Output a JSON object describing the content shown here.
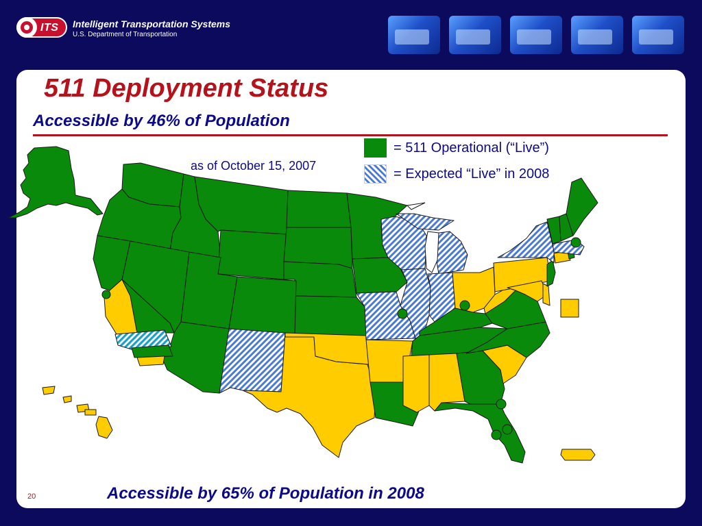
{
  "header": {
    "logo_text": "ITS",
    "org_name": "Intelligent Transportation Systems",
    "org_sub": "U.S. Department of Transportation"
  },
  "title": "511 Deployment Status",
  "subtitle": "Accessible by 46% of Population",
  "as_of": "as of October 15, 2007",
  "legend": {
    "operational": "= 511 Operational (“Live”)",
    "expected": "= Expected “Live” in 2008"
  },
  "footer": "Accessible by 65% of Population in 2008",
  "page_number": "20",
  "colors": {
    "background": "#0b0a5c",
    "operational": "#0a8a0a",
    "expected_hatch": "#4a7ad6",
    "not_deployed": "#ffcc00",
    "title_red": "#b5121b",
    "text_blue": "#0d0a8a"
  },
  "map_status": {
    "operational": [
      "Alaska",
      "Washington",
      "Oregon",
      "Idaho",
      "Montana",
      "Wyoming",
      "North Dakota",
      "South Dakota",
      "Nebraska",
      "Kansas",
      "Minnesota",
      "Iowa",
      "Nevada",
      "Utah",
      "Colorado",
      "Arizona",
      "Louisiana",
      "Georgia",
      "Florida",
      "Kentucky",
      "Virginia",
      "North Carolina",
      "Tennessee",
      "Vermont",
      "New Hampshire",
      "Maine",
      "New Jersey",
      "Rhode Island",
      "Northern California",
      "Eastern California",
      "Southern California"
    ],
    "expected_2008": [
      "Wisconsin",
      "Michigan",
      "Illinois",
      "Indiana",
      "Missouri",
      "New Mexico",
      "New York",
      "Massachusetts",
      "Los Angeles area"
    ],
    "not_deployed": [
      "Texas",
      "Oklahoma",
      "Arkansas",
      "Mississippi",
      "Alabama",
      "South Carolina",
      "Ohio",
      "Pennsylvania",
      "West Virginia",
      "Maryland",
      "Delaware",
      "Connecticut",
      "Hawaii",
      "Puerto Rico",
      "District of Columbia",
      "Central California"
    ]
  }
}
